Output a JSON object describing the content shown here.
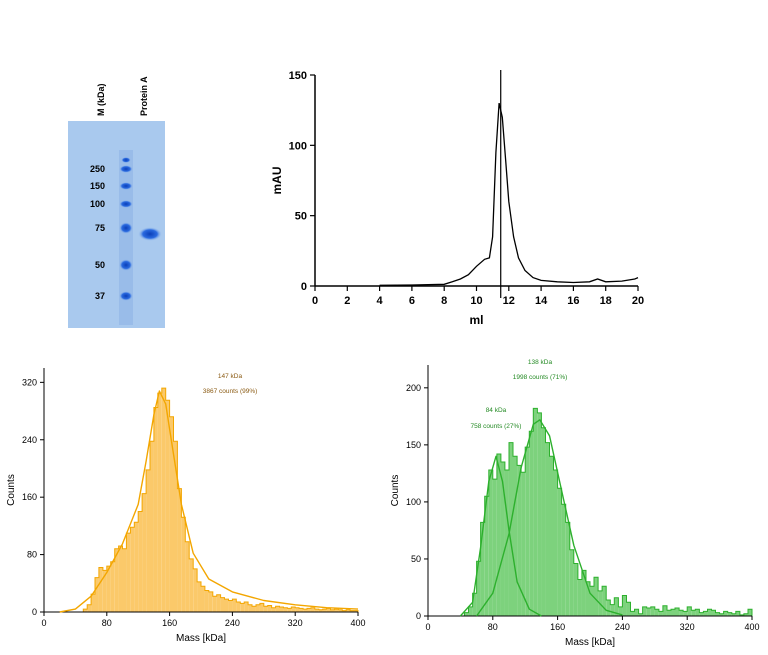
{
  "gel": {
    "lane_labels": [
      "M (kDa)",
      "Protein A"
    ],
    "markers": [
      "250",
      "150",
      "100",
      "75",
      "50",
      "37"
    ],
    "colors": {
      "background": "#a9c9ee",
      "band": "#1f5fd6"
    }
  },
  "chart_data": [
    {
      "type": "line",
      "xlabel": "ml",
      "ylabel": "mAU",
      "xlim": [
        0,
        20
      ],
      "ylim": [
        0,
        150
      ],
      "xticks": [
        0,
        2,
        4,
        6,
        8,
        10,
        12,
        14,
        16,
        18,
        20
      ],
      "yticks": [
        0,
        50,
        100,
        150
      ],
      "marker_line_x": 11.5,
      "series": [
        {
          "color": "#000000",
          "x": [
            4,
            6,
            7,
            8,
            8.5,
            9,
            9.5,
            10,
            10.5,
            10.8,
            11,
            11.2,
            11.4,
            11.6,
            11.8,
            12,
            12.3,
            12.6,
            13,
            13.5,
            14,
            15,
            16,
            17,
            17.5,
            18,
            19,
            19.8,
            20
          ],
          "y": [
            0.5,
            0.7,
            0.9,
            1.2,
            3,
            5,
            8,
            14,
            19,
            20,
            35,
            95,
            130,
            120,
            90,
            60,
            35,
            20,
            11,
            6,
            4,
            3,
            2.5,
            3,
            5,
            3,
            3.5,
            5,
            6
          ]
        }
      ]
    },
    {
      "type": "bar",
      "xlabel": "Mass [kDa]",
      "ylabel": "Counts",
      "xlim": [
        0,
        400
      ],
      "ylim": [
        0,
        340
      ],
      "xticks": [
        0,
        80,
        160,
        240,
        320,
        400
      ],
      "yticks": [
        0,
        80,
        160,
        240,
        320
      ],
      "annotation": [
        "147 kDa",
        "3867 counts (99%)"
      ],
      "colors": {
        "fill": "#fbc96a",
        "edge": "#f3a600",
        "fit": "#f3a600",
        "text": "#8a5a12"
      },
      "bins": {
        "x": [
          50,
          55,
          60,
          65,
          70,
          75,
          80,
          85,
          90,
          95,
          100,
          105,
          110,
          115,
          120,
          125,
          130,
          135,
          140,
          145,
          150,
          155,
          160,
          165,
          170,
          175,
          180,
          185,
          190,
          195,
          200,
          205,
          210,
          215,
          220,
          225,
          230,
          235,
          240,
          245,
          250,
          255,
          260,
          265,
          270,
          275,
          280,
          285,
          290,
          295,
          300,
          305,
          310,
          315,
          320,
          325,
          330,
          335,
          340,
          345,
          350,
          355,
          360,
          365,
          370,
          375,
          380,
          385,
          390,
          395
        ],
        "y": [
          4,
          10,
          25,
          48,
          62,
          58,
          64,
          70,
          88,
          92,
          88,
          110,
          118,
          125,
          140,
          165,
          198,
          238,
          285,
          305,
          312,
          295,
          272,
          238,
          172,
          132,
          98,
          74,
          60,
          42,
          36,
          30,
          28,
          22,
          24,
          20,
          18,
          16,
          18,
          14,
          12,
          14,
          10,
          8,
          10,
          12,
          8,
          9,
          6,
          8,
          7,
          6,
          5,
          7,
          6,
          5,
          4,
          5,
          6,
          4,
          3,
          4,
          5,
          3,
          4,
          3,
          2,
          3,
          2,
          2
        ]
      },
      "fit": {
        "x": [
          20,
          40,
          60,
          80,
          100,
          120,
          130,
          140,
          147,
          155,
          165,
          175,
          190,
          210,
          240,
          280,
          320,
          360,
          400
        ],
        "y": [
          0,
          4,
          22,
          55,
          95,
          150,
          210,
          275,
          308,
          290,
          220,
          150,
          82,
          46,
          28,
          16,
          10,
          6,
          4
        ]
      }
    },
    {
      "type": "bar",
      "xlabel": "Mass [kDa]",
      "ylabel": "Counts",
      "xlim": [
        0,
        400
      ],
      "ylim": [
        0,
        220
      ],
      "xticks": [
        0,
        80,
        160,
        240,
        320,
        400
      ],
      "yticks": [
        0,
        50,
        100,
        150,
        200
      ],
      "annotations": [
        [
          "138 kDa",
          "1998 counts (71%)"
        ],
        [
          "84 kDa",
          "758 counts (27%)"
        ]
      ],
      "colors": {
        "fill": "#7dd27d",
        "edge": "#2db02d",
        "fit": "#2db02d",
        "text": "#238a23"
      },
      "bins": {
        "x": [
          45,
          50,
          55,
          60,
          65,
          70,
          75,
          80,
          85,
          90,
          95,
          100,
          105,
          110,
          115,
          120,
          125,
          130,
          135,
          140,
          145,
          150,
          155,
          160,
          165,
          170,
          175,
          180,
          185,
          190,
          195,
          200,
          205,
          210,
          215,
          220,
          225,
          230,
          235,
          240,
          245,
          250,
          255,
          260,
          265,
          270,
          275,
          280,
          285,
          290,
          295,
          300,
          305,
          310,
          315,
          320,
          325,
          330,
          335,
          340,
          345,
          350,
          355,
          360,
          365,
          370,
          375,
          380,
          385,
          390,
          395
        ],
        "y": [
          3,
          8,
          20,
          48,
          82,
          105,
          128,
          120,
          142,
          135,
          128,
          152,
          140,
          132,
          126,
          148,
          162,
          182,
          178,
          165,
          152,
          140,
          128,
          112,
          98,
          82,
          58,
          46,
          32,
          40,
          30,
          26,
          34,
          22,
          26,
          14,
          10,
          16,
          8,
          18,
          12,
          4,
          6,
          2,
          8,
          7,
          8,
          6,
          4,
          9,
          5,
          6,
          7,
          5,
          4,
          8,
          5,
          6,
          3,
          4,
          6,
          5,
          3,
          2,
          4,
          3,
          2,
          4,
          1,
          2,
          6
        ]
      },
      "fit1": {
        "x": [
          40,
          55,
          65,
          75,
          84,
          92,
          100,
          110,
          125,
          140
        ],
        "y": [
          0,
          12,
          60,
          118,
          140,
          118,
          75,
          30,
          6,
          0
        ]
      },
      "fit2": {
        "x": [
          60,
          80,
          100,
          115,
          130,
          138,
          150,
          165,
          180,
          200,
          220,
          240
        ],
        "y": [
          0,
          20,
          72,
          130,
          168,
          172,
          158,
          110,
          62,
          20,
          5,
          1
        ]
      }
    }
  ]
}
